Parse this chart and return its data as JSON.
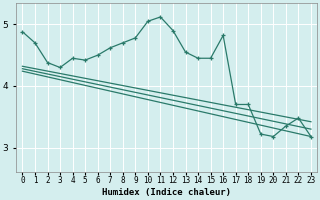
{
  "xlabel": "Humidex (Indice chaleur)",
  "background_color": "#d4eeee",
  "grid_color": "#ffffff",
  "line_color": "#2a7a6a",
  "xlim": [
    -0.5,
    23.5
  ],
  "ylim": [
    2.6,
    5.35
  ],
  "yticks": [
    3,
    4,
    5
  ],
  "xtick_labels": [
    "0",
    "1",
    "2",
    "3",
    "4",
    "5",
    "6",
    "7",
    "8",
    "9",
    "10",
    "11",
    "12",
    "13",
    "14",
    "15",
    "16",
    "17",
    "18",
    "19",
    "20",
    "21",
    "22",
    "23"
  ],
  "line1_x": [
    0,
    1,
    2,
    3,
    4,
    5,
    6,
    7,
    8,
    9,
    10,
    11,
    12,
    13,
    14,
    15,
    16,
    17,
    18,
    19,
    20,
    21,
    22,
    23
  ],
  "line1_y": [
    4.88,
    4.7,
    4.38,
    4.3,
    4.45,
    4.42,
    4.5,
    4.62,
    4.7,
    4.78,
    5.05,
    5.12,
    4.9,
    4.55,
    4.45,
    4.45,
    4.82,
    3.7,
    3.7,
    3.22,
    3.18,
    3.35,
    3.48,
    3.18
  ],
  "line2_x": [
    0,
    23
  ],
  "line2_y": [
    4.32,
    3.42
  ],
  "line3_x": [
    0,
    23
  ],
  "line3_y": [
    4.28,
    3.3
  ],
  "line4_x": [
    0,
    23
  ],
  "line4_y": [
    4.24,
    3.18
  ]
}
